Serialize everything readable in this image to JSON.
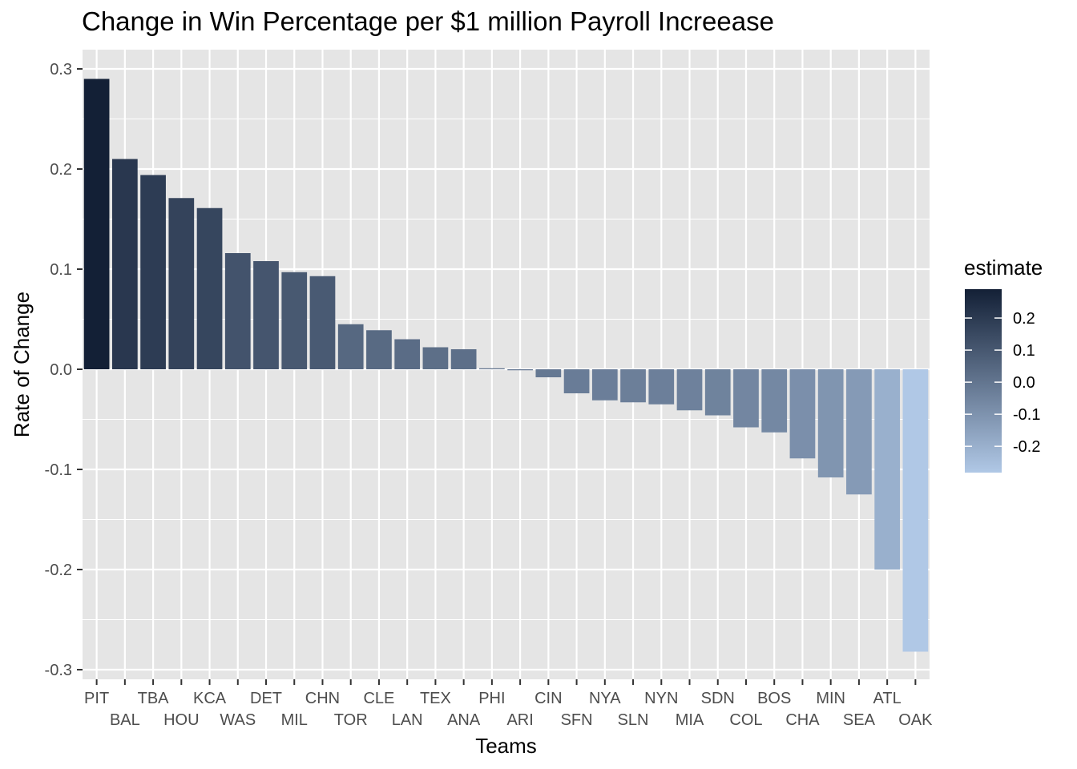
{
  "chart_data": {
    "type": "bar",
    "title": "Change in Win Percentage per $1 million Payroll Increease",
    "xlabel": "Teams",
    "ylabel": "Rate of Change",
    "ylim": [
      -0.3,
      0.3
    ],
    "yticks": [
      "0.3",
      "0.2",
      "0.1",
      "0.0",
      "-0.1",
      "-0.2",
      "-0.3"
    ],
    "ytick_values": [
      0.3,
      0.2,
      0.1,
      0.0,
      -0.1,
      -0.2,
      -0.3
    ],
    "grid": true,
    "categories": [
      "PIT",
      "BAL",
      "TBA",
      "HOU",
      "KCA",
      "WAS",
      "DET",
      "MIL",
      "CHN",
      "TOR",
      "CLE",
      "LAN",
      "TEX",
      "ANA",
      "PHI",
      "ARI",
      "CIN",
      "SFN",
      "NYA",
      "SLN",
      "NYN",
      "MIA",
      "SDN",
      "COL",
      "BOS",
      "CHA",
      "MIN",
      "SEA",
      "ATL",
      "OAK"
    ],
    "values": [
      0.29,
      0.21,
      0.194,
      0.171,
      0.161,
      0.116,
      0.108,
      0.097,
      0.093,
      0.045,
      0.039,
      0.03,
      0.022,
      0.02,
      0.001,
      -0.001,
      -0.008,
      -0.024,
      -0.031,
      -0.033,
      -0.035,
      -0.041,
      -0.046,
      -0.058,
      -0.063,
      -0.089,
      -0.108,
      -0.125,
      -0.2,
      -0.282
    ],
    "legend": {
      "title": "estimate",
      "position": "right",
      "labels": [
        "0.2",
        "0.1",
        "0.0",
        "-0.1",
        "-0.2"
      ],
      "values": [
        0.2,
        0.1,
        0.0,
        -0.1,
        -0.2
      ],
      "range": [
        -0.282,
        0.29
      ],
      "color_low": "#b0c8e6",
      "color_high": "#132036"
    },
    "panel_background": "#e5e5e5",
    "grid_color": "#ffffff"
  }
}
